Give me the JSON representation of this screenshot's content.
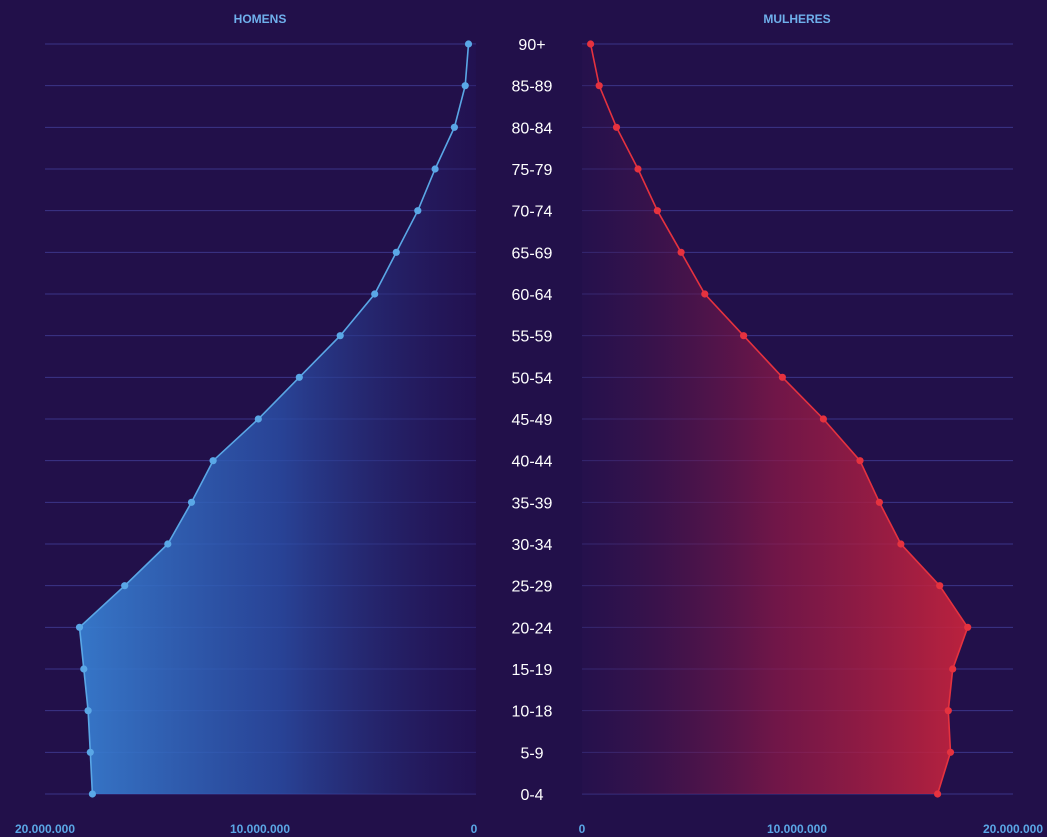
{
  "chart_data": [
    {
      "type": "area",
      "title": "HOMENS",
      "x_direction": "reversed",
      "xlim": [
        0,
        20000000
      ],
      "x_ticks": [
        "20.000.000",
        "10.000.000",
        "0"
      ],
      "categories": [
        "90+",
        "85-89",
        "80-84",
        "75-79",
        "70-74",
        "65-69",
        "60-64",
        "55-59",
        "50-54",
        "45-49",
        "40-44",
        "35-39",
        "30-34",
        "25-29",
        "20-24",
        "15-19",
        "10-18",
        "5-9",
        "0-4"
      ],
      "values": [
        350000,
        500000,
        1000000,
        1900000,
        2700000,
        3700000,
        4700000,
        6300000,
        8200000,
        10100000,
        12200000,
        13200000,
        14300000,
        16300000,
        18400000,
        18200000,
        18000000,
        17900000,
        17800000
      ],
      "color": "#5aa7e6",
      "grid": true
    },
    {
      "type": "area",
      "title": "MULHERES",
      "x_direction": "normal",
      "xlim": [
        0,
        20000000
      ],
      "x_ticks": [
        "0",
        "10.000.000",
        "20.000.000"
      ],
      "categories": [
        "90+",
        "85-89",
        "80-84",
        "75-79",
        "70-74",
        "65-69",
        "60-64",
        "55-59",
        "50-54",
        "45-49",
        "40-44",
        "35-39",
        "30-34",
        "25-29",
        "20-24",
        "15-19",
        "10-18",
        "5-9",
        "0-4"
      ],
      "values": [
        400000,
        800000,
        1600000,
        2600000,
        3500000,
        4600000,
        5700000,
        7500000,
        9300000,
        11200000,
        12900000,
        13800000,
        14800000,
        16600000,
        17900000,
        17200000,
        17000000,
        17100000,
        16500000
      ],
      "color": "#e5323f",
      "grid": true
    }
  ]
}
